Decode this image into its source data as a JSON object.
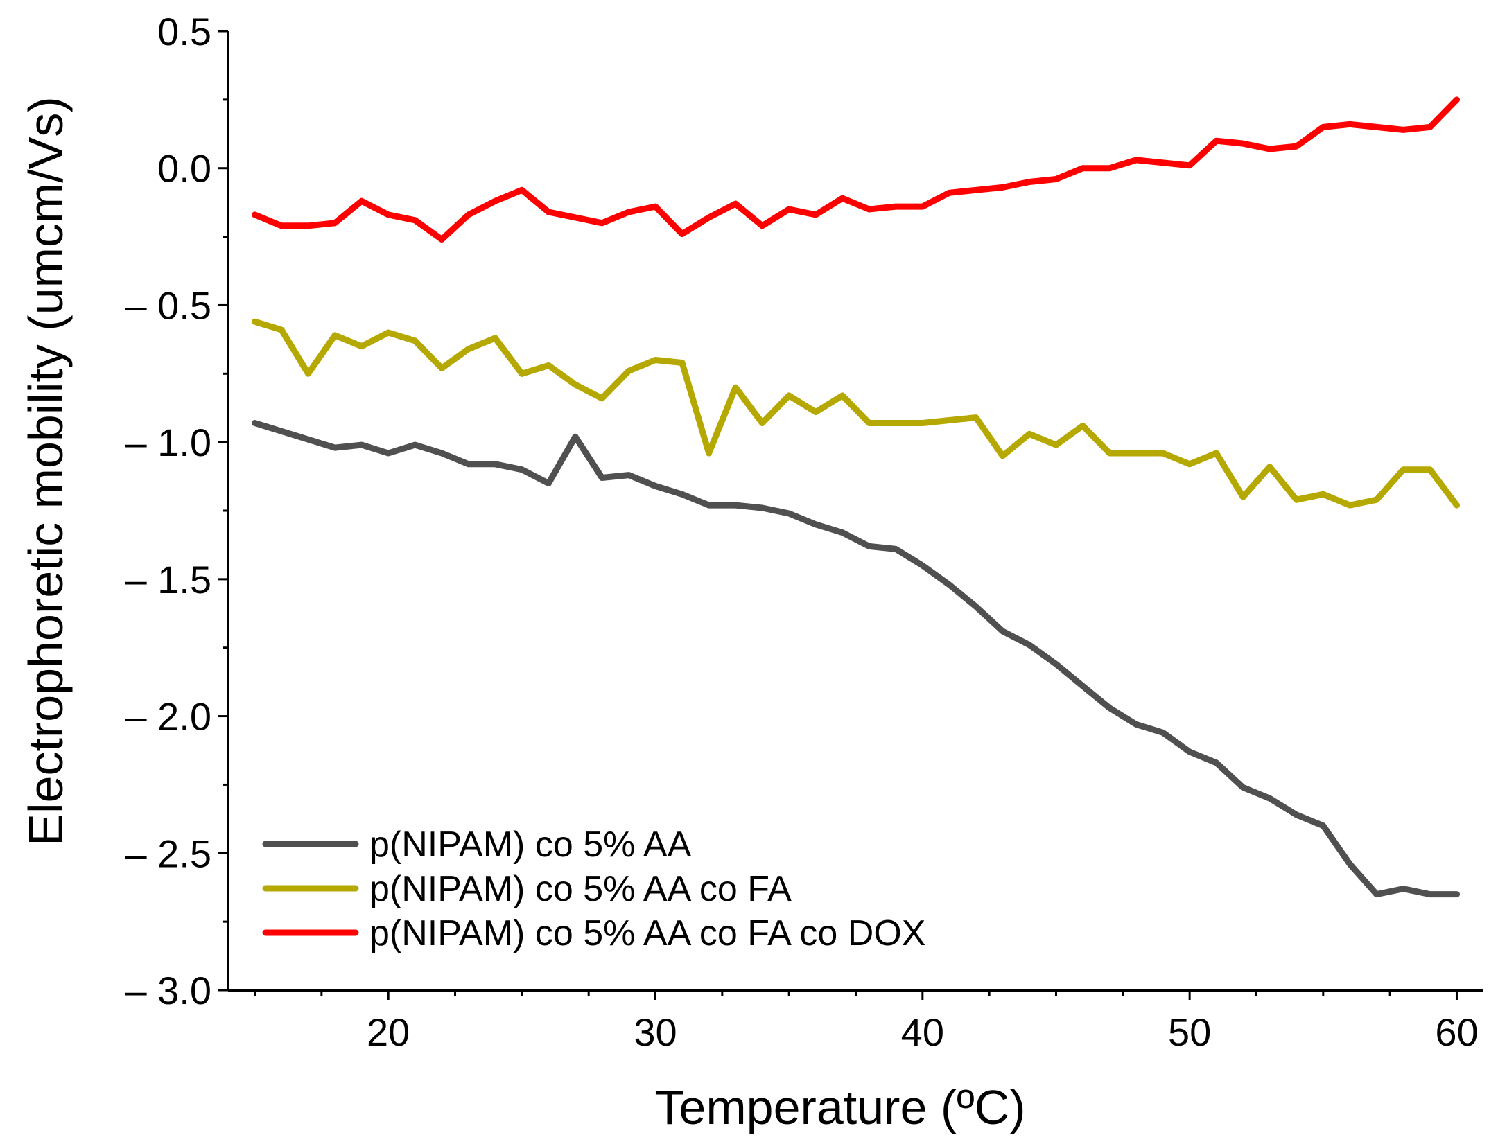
{
  "chart_data": {
    "type": "line",
    "title": "",
    "xlabel": "Temperature (ºC)",
    "ylabel": "Electrophoretic mobility (umcm/Vs)",
    "xlim": [
      14,
      61
    ],
    "ylim": [
      -3.0,
      0.5
    ],
    "xticks": [
      20,
      30,
      40,
      50,
      60
    ],
    "yticks": [
      0.5,
      0.0,
      -0.5,
      -1.0,
      -1.5,
      -2.0,
      -2.5,
      -3.0
    ],
    "xtick_labels": [
      "20",
      "30",
      "40",
      "50",
      "60"
    ],
    "ytick_labels": [
      "0.5",
      "0.0",
      "– 0.5",
      "– 1.0",
      "– 1.5",
      "– 2.0",
      "– 2.5",
      "– 3.0"
    ],
    "grid": false,
    "legend_position": "bottom-left",
    "x": [
      15,
      16,
      17,
      18,
      19,
      20,
      21,
      22,
      23,
      24,
      25,
      26,
      27,
      28,
      29,
      30,
      31,
      32,
      33,
      34,
      35,
      36,
      37,
      38,
      39,
      40,
      41,
      42,
      43,
      44,
      45,
      46,
      47,
      48,
      49,
      50,
      51,
      52,
      53,
      54,
      55,
      56,
      57,
      58,
      59,
      60
    ],
    "series": [
      {
        "name": "p(NIPAM) co 5% AA",
        "color": "#505050",
        "values": [
          -0.93,
          -0.96,
          -0.99,
          -1.02,
          -1.01,
          -1.04,
          -1.01,
          -1.04,
          -1.08,
          -1.08,
          -1.1,
          -1.15,
          -0.98,
          -1.13,
          -1.12,
          -1.16,
          -1.19,
          -1.23,
          -1.23,
          -1.24,
          -1.26,
          -1.3,
          -1.33,
          -1.38,
          -1.39,
          -1.45,
          -1.52,
          -1.6,
          -1.69,
          -1.74,
          -1.81,
          -1.89,
          -1.97,
          -2.03,
          -2.06,
          -2.13,
          -2.17,
          -2.26,
          -2.3,
          -2.36,
          -2.4,
          -2.54,
          -2.65,
          -2.63,
          -2.65,
          -2.65
        ]
      },
      {
        "name": "p(NIPAM) co 5% AA co FA",
        "color": "#B5A800",
        "values": [
          -0.56,
          -0.59,
          -0.75,
          -0.61,
          -0.65,
          -0.6,
          -0.63,
          -0.73,
          -0.66,
          -0.62,
          -0.75,
          -0.72,
          -0.79,
          -0.84,
          -0.74,
          -0.7,
          -0.71,
          -1.04,
          -0.8,
          -0.93,
          -0.83,
          -0.89,
          -0.83,
          -0.93,
          -0.93,
          -0.93,
          -0.92,
          -0.91,
          -1.05,
          -0.97,
          -1.01,
          -0.94,
          -1.04,
          -1.04,
          -1.04,
          -1.08,
          -1.04,
          -1.2,
          -1.09,
          -1.21,
          -1.19,
          -1.23,
          -1.21,
          -1.1,
          -1.1,
          -1.23
        ]
      },
      {
        "name": "p(NIPAM) co 5% AA co FA  co DOX",
        "color": "#FF0000",
        "values": [
          -0.17,
          -0.21,
          -0.21,
          -0.2,
          -0.12,
          -0.17,
          -0.19,
          -0.26,
          -0.17,
          -0.12,
          -0.08,
          -0.16,
          -0.18,
          -0.2,
          -0.16,
          -0.14,
          -0.24,
          -0.18,
          -0.13,
          -0.21,
          -0.15,
          -0.17,
          -0.11,
          -0.15,
          -0.14,
          -0.14,
          -0.09,
          -0.08,
          -0.07,
          -0.05,
          -0.04,
          0.0,
          0.0,
          0.03,
          0.02,
          0.01,
          0.1,
          0.09,
          0.07,
          0.08,
          0.15,
          0.16,
          0.15,
          0.14,
          0.15,
          0.25
        ]
      }
    ]
  }
}
